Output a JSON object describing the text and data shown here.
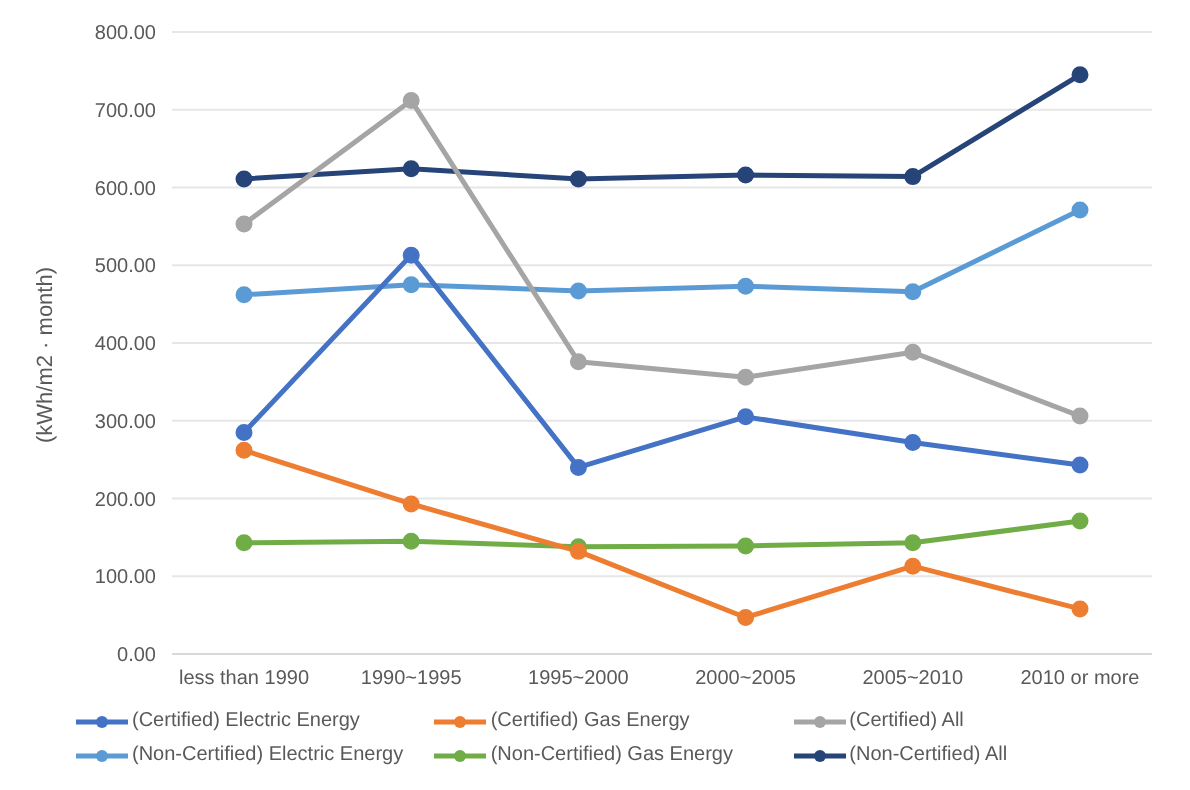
{
  "chart_data": {
    "type": "line",
    "ylabel": "(kWh/m2 · month)",
    "categories": [
      "less than 1990",
      "1990~1995",
      "1995~2000",
      "2000~2005",
      "2005~2010",
      "2010 or more"
    ],
    "series": [
      {
        "name": "(Certified) Electric Energy",
        "color": "#4472c4",
        "values": [
          285,
          513,
          240,
          305,
          272,
          243
        ]
      },
      {
        "name": "(Certified) Gas Energy",
        "color": "#ed7d31",
        "values": [
          262,
          193,
          132,
          47,
          113,
          58
        ]
      },
      {
        "name": "(Certified) All",
        "color": "#a5a5a5",
        "values": [
          553,
          712,
          376,
          356,
          388,
          306
        ]
      },
      {
        "name": "(Non-Certified) Electric Energy",
        "color": "#5b9bd5",
        "values": [
          462,
          475,
          467,
          473,
          466,
          571
        ]
      },
      {
        "name": "(Non-Certified) Gas Energy",
        "color": "#70ad47",
        "values": [
          143,
          145,
          138,
          139,
          143,
          171
        ]
      },
      {
        "name": "(Non-Certified) All",
        "color": "#264478",
        "values": [
          611,
          624,
          611,
          616,
          614,
          745
        ]
      }
    ],
    "ylim": [
      0,
      800
    ],
    "yticks": [
      {
        "value": 0,
        "label": "0.00"
      },
      {
        "value": 100,
        "label": "100.00"
      },
      {
        "value": 200,
        "label": "200.00"
      },
      {
        "value": 300,
        "label": "300.00"
      },
      {
        "value": 400,
        "label": "400.00"
      },
      {
        "value": 500,
        "label": "500.00"
      },
      {
        "value": 600,
        "label": "600.00"
      },
      {
        "value": 700,
        "label": "700.00"
      },
      {
        "value": 800,
        "label": "800.00"
      }
    ],
    "grid": "y",
    "legend": "bottom",
    "marker": "circle",
    "line_style": "solid"
  }
}
